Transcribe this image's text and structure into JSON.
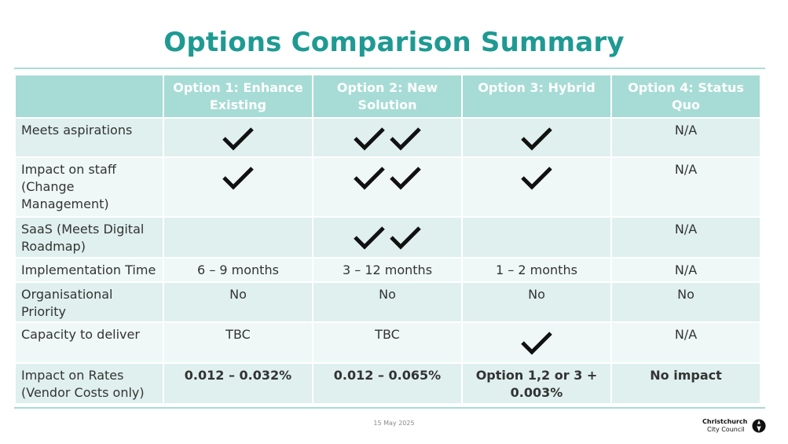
{
  "title": "Options Comparison Summary",
  "headers": [
    "",
    "Option 1: Enhance Existing",
    "Option 2: New Solution",
    "Option 3: Hybrid",
    "Option 4: Status Quo"
  ],
  "rows": [
    {
      "label": "Meets aspirations",
      "cells": [
        {
          "checks": 1
        },
        {
          "checks": 2
        },
        {
          "checks": 1
        },
        {
          "text": "N/A"
        }
      ]
    },
    {
      "label": "Impact on staff (Change Management)",
      "cells": [
        {
          "checks": 1
        },
        {
          "checks": 2
        },
        {
          "checks": 1
        },
        {
          "text": "N/A"
        }
      ]
    },
    {
      "label": "SaaS (Meets Digital Roadmap)",
      "cells": [
        {
          "text": ""
        },
        {
          "checks": 2
        },
        {
          "text": ""
        },
        {
          "text": "N/A"
        }
      ]
    },
    {
      "label": "Implementation Time",
      "cells": [
        {
          "text": "6 – 9 months"
        },
        {
          "text": "3 – 12 months"
        },
        {
          "text": "1 – 2 months"
        },
        {
          "text": "N/A"
        }
      ]
    },
    {
      "label": "Organisational Priority",
      "cells": [
        {
          "text": "No"
        },
        {
          "text": "No"
        },
        {
          "text": "No"
        },
        {
          "text": "No"
        }
      ]
    },
    {
      "label": "Capacity to deliver",
      "cells": [
        {
          "text": "TBC"
        },
        {
          "text": "TBC"
        },
        {
          "checks": 1
        },
        {
          "text": "N/A"
        }
      ]
    },
    {
      "label": "Impact on Rates (Vendor Costs only)",
      "cells": [
        {
          "text": "0.012 – 0.032%",
          "bold": true
        },
        {
          "text": "0.012 – 0.065%",
          "bold": true
        },
        {
          "text": "Option 1,2 or 3 + 0.003%",
          "bold": true
        },
        {
          "text": "No impact",
          "bold": true
        }
      ]
    }
  ],
  "footer": {
    "date": "15 May 2025",
    "logo_line1": "Christchurch",
    "logo_line2": "City Council"
  },
  "colors": {
    "accent": "#1e9a92",
    "header_bg": "#a6dcd5",
    "row_dark": "#dff0ee",
    "row_light": "#eff8f7"
  },
  "icons": {
    "tick": "check-icon"
  }
}
